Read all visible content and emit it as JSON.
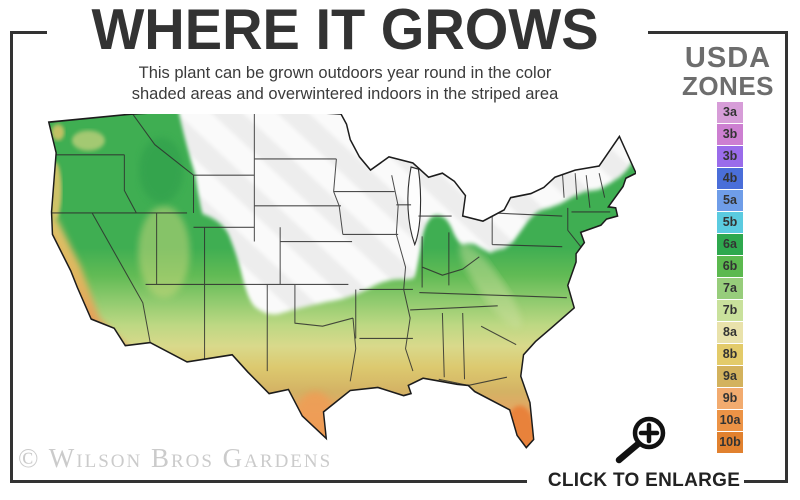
{
  "header": {
    "title": "WHERE IT GROWS",
    "subtitle_line1": "This plant can be grown outdoors year round in the color",
    "subtitle_line2": "shaded areas and overwintered indoors in the striped area"
  },
  "legend": {
    "title_line1": "USDA",
    "title_line2": "ZONES",
    "zones": [
      {
        "label": "3a",
        "color": "#d79dd8"
      },
      {
        "label": "3b",
        "color": "#cd7fd1"
      },
      {
        "label": "3b",
        "color": "#9a6cea"
      },
      {
        "label": "4b",
        "color": "#4a6ed9"
      },
      {
        "label": "5a",
        "color": "#6f9de8"
      },
      {
        "label": "5b",
        "color": "#5bcbe0"
      },
      {
        "label": "6a",
        "color": "#2ea84e"
      },
      {
        "label": "6b",
        "color": "#5cb94f"
      },
      {
        "label": "7a",
        "color": "#97cd7b"
      },
      {
        "label": "7b",
        "color": "#c9e19c"
      },
      {
        "label": "8a",
        "color": "#e9e2ab"
      },
      {
        "label": "8b",
        "color": "#e3cb6a"
      },
      {
        "label": "9a",
        "color": "#d3b25d"
      },
      {
        "label": "9b",
        "color": "#f2ab6f"
      },
      {
        "label": "10a",
        "color": "#ec9346"
      },
      {
        "label": "10b",
        "color": "#e1812f"
      }
    ]
  },
  "map": {
    "kind": "usda-hardiness-zone-choropleth-us",
    "striped_area_base_color": "#ededed",
    "striped_area_stripe_color": "#fafafa",
    "shaded_band_colors_north_to_south": [
      "#3fae52",
      "#62bb55",
      "#8fca6e",
      "#bdd883",
      "#d9d98b",
      "#dcc96f",
      "#d4b264",
      "#e9a263",
      "#ec9148",
      "#e4812f"
    ],
    "west_coast_colors": [
      "#ddc46a",
      "#e89a5e"
    ],
    "state_border_color": "#2e2e2e",
    "outline_color": "#1c1c1c"
  },
  "footer": {
    "watermark": "© Wilson Bros Gardens",
    "enlarge_label": "CLICK TO ENLARGE"
  },
  "icons": {
    "magnifier": "zoom-in-magnifier-icon"
  },
  "frame": {
    "border_color": "#333333"
  }
}
